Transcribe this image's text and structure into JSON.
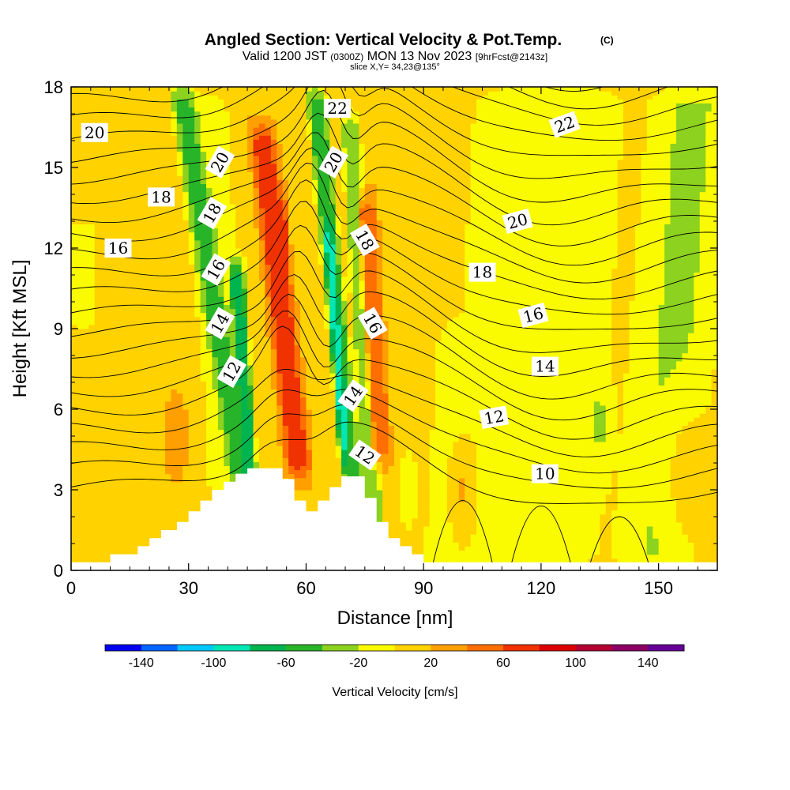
{
  "title": {
    "main": "Angled Section: Vertical Velocity & Pot.Temp.",
    "copyright": "(C)",
    "valid_prefix": "Valid 1200 JST",
    "valid_utc": "(0300Z)",
    "valid_date": "MON 13 Nov 2023",
    "forecast": "[9hrFcst@2143z]",
    "slice": "slice X,Y= 34,23@135°"
  },
  "chart_data": {
    "type": "heatmap",
    "xlabel": "Distance [nm]",
    "ylabel": "Height [Kft MSL]",
    "xlim": [
      0,
      165
    ],
    "ylim": [
      0,
      18
    ],
    "x_ticks": [
      0,
      30,
      60,
      90,
      120,
      150
    ],
    "y_ticks": [
      0,
      3,
      6,
      9,
      12,
      15,
      18
    ],
    "colorbar": {
      "label": "Vertical Velocity [cm/s]",
      "tick_labels": [
        "-140",
        "-100",
        "-60",
        "-20",
        "20",
        "60",
        "100",
        "140"
      ],
      "tick_values": [
        -140,
        -100,
        -60,
        -20,
        20,
        60,
        100,
        140
      ],
      "bounds": [
        -160,
        -140,
        -120,
        -100,
        -80,
        -60,
        -40,
        -20,
        0,
        20,
        40,
        60,
        80,
        100,
        120,
        140,
        160
      ],
      "colors": [
        "#0000f0",
        "#0064ff",
        "#00c8ff",
        "#00e6b4",
        "#00b450",
        "#28b428",
        "#8cd21e",
        "#fafa00",
        "#ffd200",
        "#ffa000",
        "#ff6e00",
        "#f03200",
        "#dc0000",
        "#b40032",
        "#8c0064",
        "#640096"
      ]
    },
    "velocity_features": [
      {
        "type": "background",
        "value": 15
      },
      {
        "type": "band",
        "value": -5,
        "xb": 42,
        "slope": -0.45,
        "width": 8,
        "sharp": 1.6,
        "ylo": 0,
        "yhi": 18
      },
      {
        "type": "band",
        "value": -45,
        "xb": 47,
        "slope": -1.05,
        "width": 3.2,
        "sharp": 2,
        "ylo": 2.5,
        "yhi": 18
      },
      {
        "type": "band",
        "value": -95,
        "xb": 47.5,
        "slope": -0.5,
        "width": 1.3,
        "sharp": 2,
        "ylo": 3.8,
        "yhi": 11
      },
      {
        "type": "band",
        "value": -65,
        "xb": 47,
        "slope": -0.4,
        "width": 1.8,
        "sharp": 2,
        "ylo": 2.5,
        "yhi": 11.5
      },
      {
        "type": "band",
        "value": -50,
        "xb": 74,
        "slope": -0.65,
        "width": 2.6,
        "sharp": 2,
        "ylo": 2,
        "yhi": 18
      },
      {
        "type": "band",
        "value": -85,
        "xb": 72,
        "slope": -0.5,
        "width": 1.3,
        "sharp": 2,
        "ylo": 4,
        "yhi": 13
      },
      {
        "type": "band",
        "value": -35,
        "xb": 78,
        "slope": -0.4,
        "width": 2.5,
        "sharp": 2,
        "ylo": 1,
        "yhi": 17
      },
      {
        "type": "band",
        "value": 50,
        "xb": 81,
        "slope": -0.4,
        "width": 2.5,
        "sharp": 2,
        "ylo": 4,
        "yhi": 14
      },
      {
        "type": "band",
        "value": 75,
        "xb": 61,
        "slope": -0.75,
        "width": 3.2,
        "sharp": 1.6,
        "ylo": 3.5,
        "yhi": 16.5
      },
      {
        "type": "band",
        "value": 65,
        "xb": 57,
        "slope": -0.25,
        "width": 1.6,
        "sharp": 2,
        "ylo": 6,
        "yhi": 14
      },
      {
        "type": "band",
        "value": -20,
        "xb": 115,
        "slope": 0.4,
        "width": 20,
        "sharp": 1.5,
        "ylo": 0,
        "yhi": 18
      },
      {
        "type": "band",
        "value": -22,
        "xb": 150,
        "slope": 0.5,
        "width": 11,
        "sharp": 1.5,
        "ylo": 0,
        "yhi": 18
      },
      {
        "type": "band",
        "value": -15,
        "xb": 95,
        "slope": 0.4,
        "width": 5,
        "sharp": 1.6,
        "ylo": 0,
        "yhi": 9
      },
      {
        "type": "band",
        "value": -12,
        "xb": 3,
        "slope": 0,
        "width": 4,
        "sharp": 2,
        "ylo": 9,
        "yhi": 13
      },
      {
        "type": "blob",
        "value": 25,
        "cx": 27,
        "cy": 5,
        "rx": 5,
        "ry": 2.5
      },
      {
        "type": "blob",
        "value": 20,
        "cx": 10,
        "cy": 5.5,
        "rx": 3.5,
        "ry": 1.5
      },
      {
        "type": "blob",
        "value": 22,
        "cx": 100,
        "cy": 3,
        "rx": 5,
        "ry": 2.5
      },
      {
        "type": "blob",
        "value": -20,
        "cx": 86,
        "cy": 3,
        "rx": 3,
        "ry": 1.8
      },
      {
        "type": "blob",
        "value": -25,
        "cx": 135,
        "cy": 5.5,
        "rx": 3,
        "ry": 2
      },
      {
        "type": "blob",
        "value": 18,
        "cx": 158,
        "cy": 3.5,
        "rx": 7,
        "ry": 3
      }
    ],
    "terrain": {
      "x": [
        0,
        10,
        17,
        20,
        23,
        27,
        30,
        33,
        36,
        39,
        42,
        45,
        48,
        51,
        54,
        57,
        60,
        63,
        66,
        69,
        72,
        75,
        78,
        81,
        84,
        87,
        90,
        165
      ],
      "y": [
        0.3,
        0.6,
        0.9,
        1.2,
        1.5,
        1.8,
        2.2,
        2.6,
        3.0,
        3.3,
        3.6,
        3.8,
        3.8,
        3.8,
        3.4,
        2.6,
        2.2,
        2.6,
        3.1,
        3.5,
        3.5,
        2.7,
        1.8,
        1.2,
        0.9,
        0.6,
        0.3,
        0.3
      ]
    },
    "potential_temperature": {
      "levels_display": "every 1 K",
      "labels": [
        {
          "text": "20",
          "x": 6,
          "y": 16.3,
          "rot": 0
        },
        {
          "text": "18",
          "x": 23,
          "y": 13.9,
          "rot": 0
        },
        {
          "text": "16",
          "x": 12,
          "y": 12,
          "rot": 0
        },
        {
          "text": "20",
          "x": 38,
          "y": 15.2,
          "rot": 60
        },
        {
          "text": "18",
          "x": 36,
          "y": 13.3,
          "rot": 60
        },
        {
          "text": "16",
          "x": 37,
          "y": 11.2,
          "rot": 60
        },
        {
          "text": "14",
          "x": 38,
          "y": 9.2,
          "rot": 60
        },
        {
          "text": "12",
          "x": 41,
          "y": 7.4,
          "rot": 60
        },
        {
          "text": "22",
          "x": 68,
          "y": 17.2,
          "rot": 0
        },
        {
          "text": "20",
          "x": 67,
          "y": 15.2,
          "rot": 60
        },
        {
          "text": "18",
          "x": 75,
          "y": 12.3,
          "rot": -60
        },
        {
          "text": "16",
          "x": 77,
          "y": 9.2,
          "rot": -60
        },
        {
          "text": "14",
          "x": 72,
          "y": 6.5,
          "rot": 55
        },
        {
          "text": "12",
          "x": 75,
          "y": 4.3,
          "rot": -35
        },
        {
          "text": "22",
          "x": 126,
          "y": 16.6,
          "rot": 20
        },
        {
          "text": "20",
          "x": 114,
          "y": 13,
          "rot": 15
        },
        {
          "text": "18",
          "x": 105,
          "y": 11.1,
          "rot": 0
        },
        {
          "text": "16",
          "x": 118,
          "y": 9.5,
          "rot": 15
        },
        {
          "text": "14",
          "x": 121,
          "y": 7.6,
          "rot": 0
        },
        {
          "text": "12",
          "x": 108,
          "y": 5.7,
          "rot": 10
        },
        {
          "text": "10",
          "x": 121,
          "y": 3.6,
          "rot": 0
        }
      ]
    }
  }
}
